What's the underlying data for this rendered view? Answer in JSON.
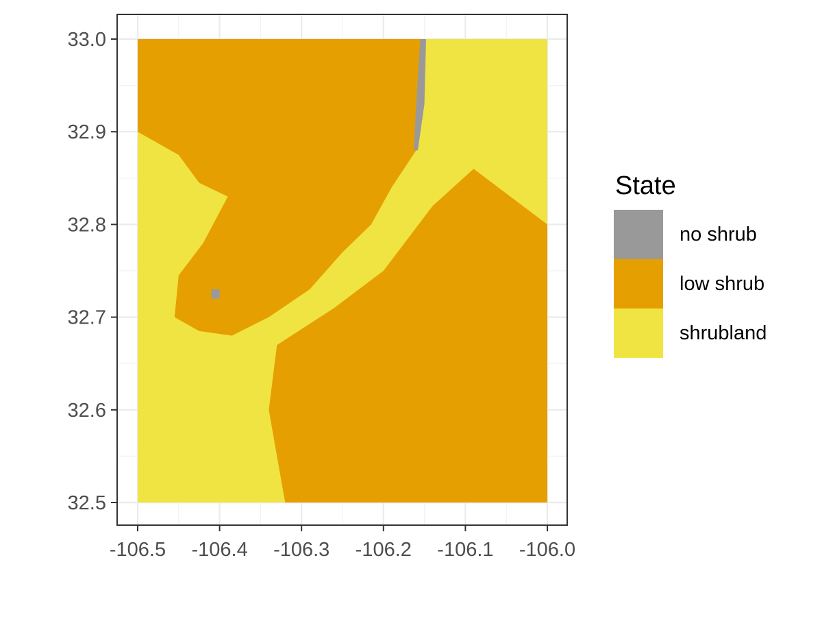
{
  "chart_data": {
    "type": "heatmap",
    "subtype": "categorical raster map",
    "title": "",
    "xlabel": "",
    "ylabel": "",
    "xlim": [
      -106.5,
      -106.0
    ],
    "ylim": [
      32.5,
      33.0
    ],
    "x_ticks": [
      "-106.5",
      "-106.4",
      "-106.3",
      "-106.2",
      "-106.1",
      "-106.0"
    ],
    "y_ticks": [
      "32.5",
      "32.6",
      "32.7",
      "32.8",
      "32.9",
      "33.0"
    ],
    "x_tick_values": [
      -106.5,
      -106.4,
      -106.3,
      -106.2,
      -106.1,
      -106.0
    ],
    "y_tick_values": [
      32.5,
      32.6,
      32.7,
      32.8,
      32.9,
      33.0
    ],
    "grid": true,
    "legend": {
      "title": "State",
      "position": "right",
      "items": [
        {
          "label": "no shrub",
          "color": "#999999"
        },
        {
          "label": "low shrub",
          "color": "#E69F00"
        },
        {
          "label": "shrubland",
          "color": "#F0E442"
        }
      ]
    },
    "regions": [
      {
        "category": "low shrub",
        "description": "north-western block",
        "polygon": [
          [
            -106.5,
            33.0
          ],
          [
            -106.155,
            33.0
          ],
          [
            -106.155,
            32.93
          ],
          [
            -106.16,
            32.88
          ],
          [
            -106.19,
            32.84
          ],
          [
            -106.215,
            32.8
          ],
          [
            -106.25,
            32.77
          ],
          [
            -106.29,
            32.73
          ],
          [
            -106.34,
            32.7
          ],
          [
            -106.385,
            32.68
          ],
          [
            -106.425,
            32.685
          ],
          [
            -106.455,
            32.7
          ],
          [
            -106.45,
            32.745
          ],
          [
            -106.42,
            32.78
          ],
          [
            -106.39,
            32.83
          ],
          [
            -106.425,
            32.845
          ],
          [
            -106.45,
            32.875
          ],
          [
            -106.5,
            32.9
          ]
        ]
      },
      {
        "category": "low shrub",
        "description": "south-eastern patchy area",
        "polygon": [
          [
            -106.32,
            32.5
          ],
          [
            -106.0,
            32.5
          ],
          [
            -106.0,
            32.8
          ],
          [
            -106.09,
            32.86
          ],
          [
            -106.14,
            32.82
          ],
          [
            -106.2,
            32.75
          ],
          [
            -106.26,
            32.71
          ],
          [
            -106.33,
            32.67
          ],
          [
            -106.34,
            32.6
          ],
          [
            -106.33,
            32.55
          ]
        ]
      },
      {
        "category": "no shrub",
        "description": "north-central linear features",
        "polygon": [
          [
            -106.155,
            33.0
          ],
          [
            -106.148,
            33.0
          ],
          [
            -106.15,
            32.93
          ],
          [
            -106.158,
            32.88
          ],
          [
            -106.163,
            32.88
          ],
          [
            -106.16,
            32.93
          ]
        ]
      },
      {
        "category": "no shrub",
        "description": "south-west scattered pixels",
        "polygon": [
          [
            -106.41,
            32.73
          ],
          [
            -106.4,
            32.73
          ],
          [
            -106.4,
            32.72
          ],
          [
            -106.41,
            32.72
          ]
        ]
      }
    ]
  }
}
